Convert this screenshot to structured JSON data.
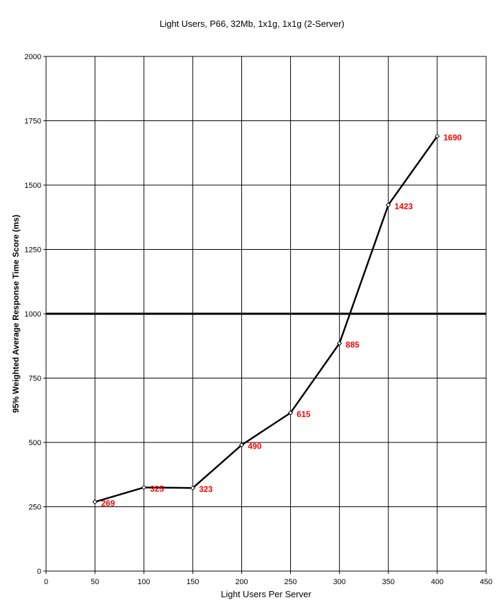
{
  "chart_data": {
    "type": "line",
    "title": "Light Users, P66, 32Mb, 1x1g, 1x1g (2-Server)",
    "xlabel": "Light Users Per Server",
    "ylabel": "95% Weighted Average Response Time Score (ms)",
    "xlim": [
      0,
      450
    ],
    "ylim": [
      0,
      2000
    ],
    "x_ticks": [
      0,
      50,
      100,
      150,
      200,
      250,
      300,
      350,
      400,
      450
    ],
    "y_ticks": [
      0,
      250,
      500,
      750,
      1000,
      1250,
      1500,
      1750,
      2000
    ],
    "grid": true,
    "reference_line": 1000,
    "series": [
      {
        "x": [
          50,
          100,
          150,
          200,
          250,
          300,
          350,
          400
        ],
        "values": [
          269,
          325,
          323,
          490,
          615,
          885,
          1423,
          1690
        ],
        "data_labels": [
          "269",
          "325",
          "323",
          "490",
          "615",
          "885",
          "1423",
          "1690"
        ]
      }
    ],
    "colors": {
      "line": "#000000",
      "label": "#ff0000",
      "grid": "#000000"
    }
  }
}
